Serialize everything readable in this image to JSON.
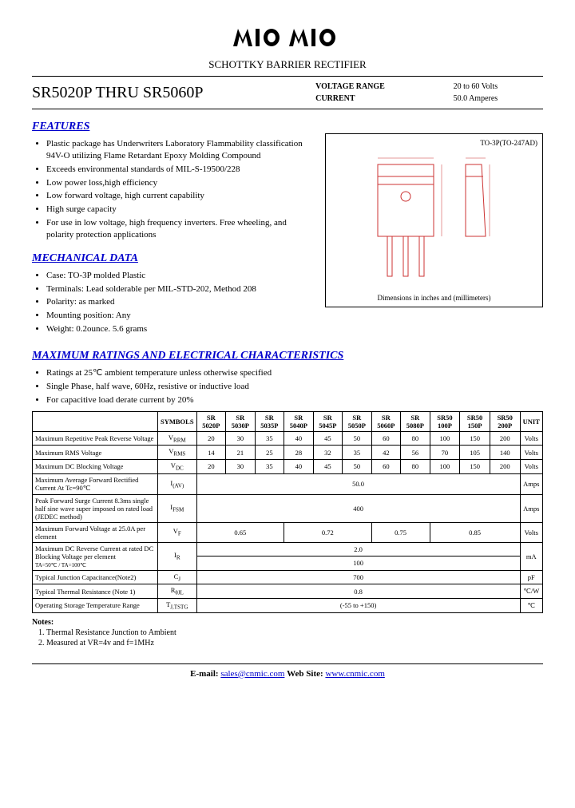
{
  "header": {
    "subtitle": "SCHOTTKY BARRIER RECTIFIER",
    "part_title": "SR5020P THRU SR5060P",
    "voltage_label": "VOLTAGE RANGE",
    "voltage_value": "20 to 60 Volts",
    "current_label": "CURRENT",
    "current_value": "50.0 Amperes"
  },
  "features": {
    "heading": "FEATURES",
    "items": [
      "Plastic package has Underwriters Laboratory Flammability classification 94V-O utilizing Flame Retardant Epoxy Molding Compound",
      "Exceeds environmental standards of MIL-S-19500/228",
      "Low power loss,high efficiency",
      "Low forward voltage, high current capability",
      "High surge capacity",
      "For use in low voltage, high frequency inverters. Free wheeling, and polarity protection applications"
    ]
  },
  "mechanical": {
    "heading": "MECHANICAL DATA",
    "items": [
      "Case: TO-3P molded Plastic",
      "Terminals: Lead solderable per MIL-STD-202, Method 208",
      "Polarity: as marked",
      "Mounting position: Any",
      "Weight:  0.2ounce. 5.6 grams"
    ]
  },
  "package": {
    "label": "TO-3P(TO-247AD)",
    "caption": "Dimensions in inches and (millimeters)"
  },
  "ratings": {
    "heading": "MAXIMUM RATINGS AND ELECTRICAL CHARACTERISTICS",
    "notes_top": [
      "Ratings at 25℃ ambient temperature unless otherwise specified",
      "Single Phase, half wave, 60Hz, resistive or inductive load",
      "For capacitive load derate current by 20%"
    ],
    "headers": [
      "SYMBOLS",
      "SR 5020P",
      "SR 5030P",
      "SR 5035P",
      "SR 5040P",
      "SR 5045P",
      "SR 5050P",
      "SR 5060P",
      "SR 5080P",
      "SR50 100P",
      "SR50 150P",
      "SR50 200P",
      "UNIT"
    ],
    "rows": [
      {
        "param": "Maximum Repetitive Peak Reverse Voltage",
        "sym": "V",
        "sub": "RRM",
        "vals": [
          "20",
          "30",
          "35",
          "40",
          "45",
          "50",
          "60",
          "80",
          "100",
          "150",
          "200"
        ],
        "unit": "Volts"
      },
      {
        "param": "Maximum RMS Voltage",
        "sym": "V",
        "sub": "RMS",
        "vals": [
          "14",
          "21",
          "25",
          "28",
          "32",
          "35",
          "42",
          "56",
          "70",
          "105",
          "140"
        ],
        "unit": "Volts"
      },
      {
        "param": "Maximum DC Blocking Voltage",
        "sym": "V",
        "sub": "DC",
        "vals": [
          "20",
          "30",
          "35",
          "40",
          "45",
          "50",
          "60",
          "80",
          "100",
          "150",
          "200"
        ],
        "unit": "Volts"
      },
      {
        "param": "Maximum Average Forward Rectified Current At Tc=90℃",
        "sym": "I",
        "sub": "(AV)",
        "span": "50.0",
        "unit": "Amps"
      },
      {
        "param": "Peak Forward Surge Current 8.3ms single half sine wave super imposed on rated load (JEDEC method)",
        "sym": "I",
        "sub": "FSM",
        "span": "400",
        "unit": "Amps"
      },
      {
        "param": "Maximum Forward Voltage at 25.0A per element",
        "sym": "V",
        "sub": "F",
        "groups": [
          {
            "span": 3,
            "val": "0.65"
          },
          {
            "span": 3,
            "val": "0.72"
          },
          {
            "span": 2,
            "val": "0.75"
          },
          {
            "span": 3,
            "val": "0.85"
          }
        ],
        "unit": "Volts"
      }
    ],
    "ir_row": {
      "param": "Maximum DC Reverse Current at rated DC Blocking Voltage per element",
      "cond1": "TA=50℃",
      "val1": "2.0",
      "cond2": "TA=100℃",
      "val2": "100",
      "sym": "I",
      "sub": "R",
      "unit": "mA"
    },
    "simple_rows": [
      {
        "param": "Typical Junction Capacitance(Note2)",
        "sym": "C",
        "sub": "J",
        "val": "700",
        "unit": "pF"
      },
      {
        "param": "Typical Thermal Resistance (Note 1)",
        "sym": "R",
        "sub": "θJL",
        "val": "0.8",
        "unit": "℃/W"
      },
      {
        "param": "Operating Storage Temperature Range",
        "sym": "T",
        "sub": "J,TSTG",
        "val": "(-55 to +150)",
        "unit": "℃"
      }
    ],
    "notes_heading": "Notes:",
    "notes": [
      "Thermal Resistance Junction to Ambient",
      "Measured at VR=4v and f=1MHz"
    ]
  },
  "footer": {
    "email_label": "E-mail: ",
    "email": "sales@cnmic.com",
    "web_label": "    Web Site: ",
    "web": "www.cnmic.com"
  }
}
